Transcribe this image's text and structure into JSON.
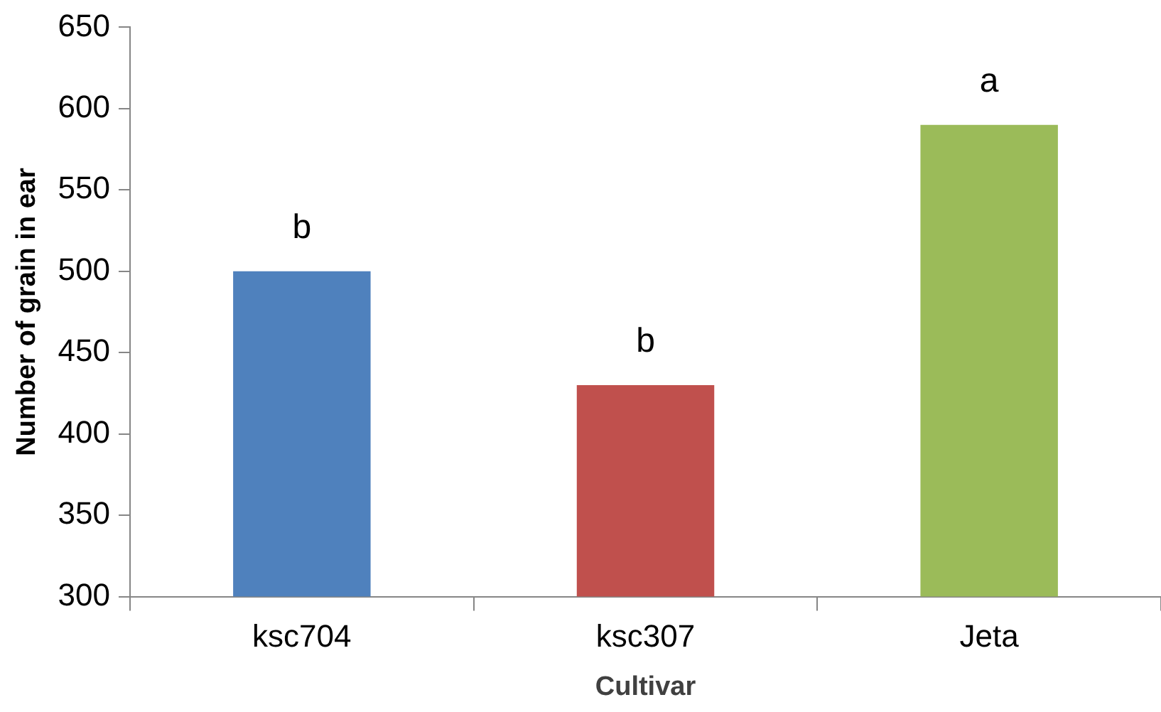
{
  "chart_data": {
    "type": "bar",
    "xlabel": "Cultivar",
    "ylabel": "Number of grain in ear",
    "categories": [
      "ksc704",
      "ksc307",
      "Jeta"
    ],
    "values": [
      500,
      430,
      590
    ],
    "colors": [
      "#4f81bd",
      "#c0504d",
      "#9bbb59"
    ],
    "ylim": [
      300,
      650
    ],
    "yticks": [
      300,
      350,
      400,
      450,
      500,
      550,
      600,
      650
    ],
    "grid": false,
    "legend": false,
    "annotations": [
      {
        "text": "b",
        "x": "ksc704",
        "y": 500
      },
      {
        "text": "b",
        "x": "ksc307",
        "y": 430
      },
      {
        "text": "a",
        "x": "Jeta",
        "y": 590
      }
    ]
  }
}
